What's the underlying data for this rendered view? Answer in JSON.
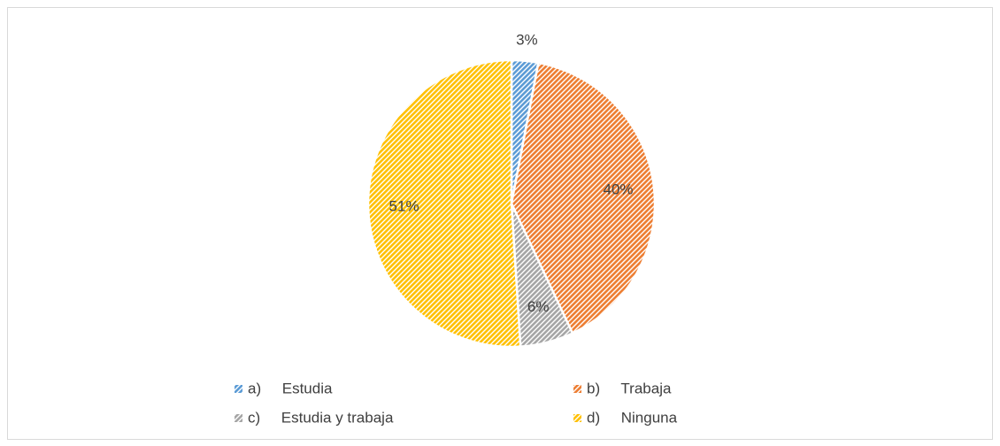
{
  "chart_data": {
    "type": "pie",
    "categories": [
      "a)     Estudia",
      "b)     Trabaja",
      "c)     Estudia y trabaja",
      "d)     Ninguna"
    ],
    "values": [
      3,
      40,
      6,
      51
    ],
    "value_labels": [
      "3%",
      "40%",
      "6%",
      "51%"
    ],
    "colors": [
      "#5b9bd5",
      "#ed7d31",
      "#a5a5a5",
      "#ffc000"
    ],
    "legend": "bottom"
  }
}
